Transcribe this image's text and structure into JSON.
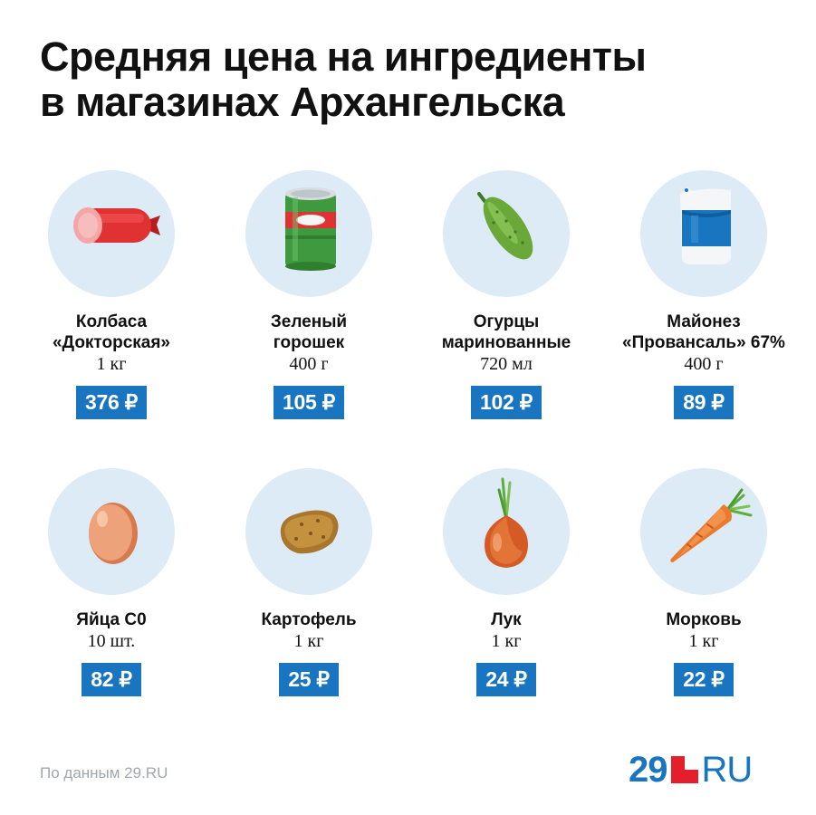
{
  "title": {
    "line1": "Средняя цена на ингредиенты",
    "line2": "в магазинах Архангельска"
  },
  "items": [
    {
      "name1": "Колбаса",
      "name2": "«Докторская»",
      "qty": "1 кг",
      "price": "376 ₽",
      "icon": "sausage-icon"
    },
    {
      "name1": "Зеленый",
      "name2": "горошек",
      "qty": "400 г",
      "price": "105 ₽",
      "icon": "peas-can-icon"
    },
    {
      "name1": "Огурцы",
      "name2": "маринованные",
      "qty": "720 мл",
      "price": "102 ₽",
      "icon": "cucumber-icon"
    },
    {
      "name1": "Майонез",
      "name2": "«Провансаль» 67%",
      "qty": "400 г",
      "price": "89 ₽",
      "icon": "mayonnaise-icon"
    },
    {
      "name1": "Яйца С0",
      "name2": "",
      "qty": "10 шт.",
      "price": "82 ₽",
      "icon": "egg-icon"
    },
    {
      "name1": "Картофель",
      "name2": "",
      "qty": "1 кг",
      "price": "25 ₽",
      "icon": "potato-icon"
    },
    {
      "name1": "Лук",
      "name2": "",
      "qty": "1 кг",
      "price": "24 ₽",
      "icon": "onion-icon"
    },
    {
      "name1": "Морковь",
      "name2": "",
      "qty": "1 кг",
      "price": "22 ₽",
      "icon": "carrot-icon"
    }
  ],
  "footer": {
    "source": "По данным 29.RU",
    "logo_number": "29",
    "logo_text": "RU"
  },
  "colors": {
    "accent": "#1a75c0",
    "circle": "#dcebf6",
    "brand_red": "#e41e2b",
    "source_text": "#a0a7ad"
  }
}
